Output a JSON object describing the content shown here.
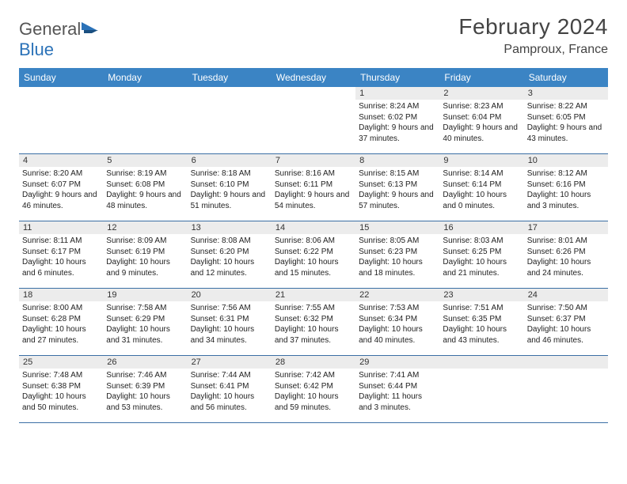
{
  "logo": {
    "word1": "General",
    "word2": "Blue"
  },
  "title": "February 2024",
  "location": "Pamproux, France",
  "colors": {
    "header_bg": "#3b84c4",
    "header_text": "#ffffff",
    "row_border": "#3b6fa5",
    "daynum_bg": "#ececec",
    "body_text": "#222222",
    "title_text": "#444444",
    "logo_gray": "#555555",
    "logo_blue": "#2b72b8"
  },
  "fonts": {
    "title_size_pt": 21,
    "location_size_pt": 12,
    "dayhead_size_pt": 9,
    "cell_size_pt": 7.5
  },
  "day_headers": [
    "Sunday",
    "Monday",
    "Tuesday",
    "Wednesday",
    "Thursday",
    "Friday",
    "Saturday"
  ],
  "weeks": [
    [
      null,
      null,
      null,
      null,
      {
        "n": "1",
        "sr": "8:24 AM",
        "ss": "6:02 PM",
        "dl": "9 hours and 37 minutes."
      },
      {
        "n": "2",
        "sr": "8:23 AM",
        "ss": "6:04 PM",
        "dl": "9 hours and 40 minutes."
      },
      {
        "n": "3",
        "sr": "8:22 AM",
        "ss": "6:05 PM",
        "dl": "9 hours and 43 minutes."
      }
    ],
    [
      {
        "n": "4",
        "sr": "8:20 AM",
        "ss": "6:07 PM",
        "dl": "9 hours and 46 minutes."
      },
      {
        "n": "5",
        "sr": "8:19 AM",
        "ss": "6:08 PM",
        "dl": "9 hours and 48 minutes."
      },
      {
        "n": "6",
        "sr": "8:18 AM",
        "ss": "6:10 PM",
        "dl": "9 hours and 51 minutes."
      },
      {
        "n": "7",
        "sr": "8:16 AM",
        "ss": "6:11 PM",
        "dl": "9 hours and 54 minutes."
      },
      {
        "n": "8",
        "sr": "8:15 AM",
        "ss": "6:13 PM",
        "dl": "9 hours and 57 minutes."
      },
      {
        "n": "9",
        "sr": "8:14 AM",
        "ss": "6:14 PM",
        "dl": "10 hours and 0 minutes."
      },
      {
        "n": "10",
        "sr": "8:12 AM",
        "ss": "6:16 PM",
        "dl": "10 hours and 3 minutes."
      }
    ],
    [
      {
        "n": "11",
        "sr": "8:11 AM",
        "ss": "6:17 PM",
        "dl": "10 hours and 6 minutes."
      },
      {
        "n": "12",
        "sr": "8:09 AM",
        "ss": "6:19 PM",
        "dl": "10 hours and 9 minutes."
      },
      {
        "n": "13",
        "sr": "8:08 AM",
        "ss": "6:20 PM",
        "dl": "10 hours and 12 minutes."
      },
      {
        "n": "14",
        "sr": "8:06 AM",
        "ss": "6:22 PM",
        "dl": "10 hours and 15 minutes."
      },
      {
        "n": "15",
        "sr": "8:05 AM",
        "ss": "6:23 PM",
        "dl": "10 hours and 18 minutes."
      },
      {
        "n": "16",
        "sr": "8:03 AM",
        "ss": "6:25 PM",
        "dl": "10 hours and 21 minutes."
      },
      {
        "n": "17",
        "sr": "8:01 AM",
        "ss": "6:26 PM",
        "dl": "10 hours and 24 minutes."
      }
    ],
    [
      {
        "n": "18",
        "sr": "8:00 AM",
        "ss": "6:28 PM",
        "dl": "10 hours and 27 minutes."
      },
      {
        "n": "19",
        "sr": "7:58 AM",
        "ss": "6:29 PM",
        "dl": "10 hours and 31 minutes."
      },
      {
        "n": "20",
        "sr": "7:56 AM",
        "ss": "6:31 PM",
        "dl": "10 hours and 34 minutes."
      },
      {
        "n": "21",
        "sr": "7:55 AM",
        "ss": "6:32 PM",
        "dl": "10 hours and 37 minutes."
      },
      {
        "n": "22",
        "sr": "7:53 AM",
        "ss": "6:34 PM",
        "dl": "10 hours and 40 minutes."
      },
      {
        "n": "23",
        "sr": "7:51 AM",
        "ss": "6:35 PM",
        "dl": "10 hours and 43 minutes."
      },
      {
        "n": "24",
        "sr": "7:50 AM",
        "ss": "6:37 PM",
        "dl": "10 hours and 46 minutes."
      }
    ],
    [
      {
        "n": "25",
        "sr": "7:48 AM",
        "ss": "6:38 PM",
        "dl": "10 hours and 50 minutes."
      },
      {
        "n": "26",
        "sr": "7:46 AM",
        "ss": "6:39 PM",
        "dl": "10 hours and 53 minutes."
      },
      {
        "n": "27",
        "sr": "7:44 AM",
        "ss": "6:41 PM",
        "dl": "10 hours and 56 minutes."
      },
      {
        "n": "28",
        "sr": "7:42 AM",
        "ss": "6:42 PM",
        "dl": "10 hours and 59 minutes."
      },
      {
        "n": "29",
        "sr": "7:41 AM",
        "ss": "6:44 PM",
        "dl": "11 hours and 3 minutes."
      },
      null,
      null
    ]
  ],
  "labels": {
    "sunrise": "Sunrise:",
    "sunset": "Sunset:",
    "daylight": "Daylight:"
  }
}
